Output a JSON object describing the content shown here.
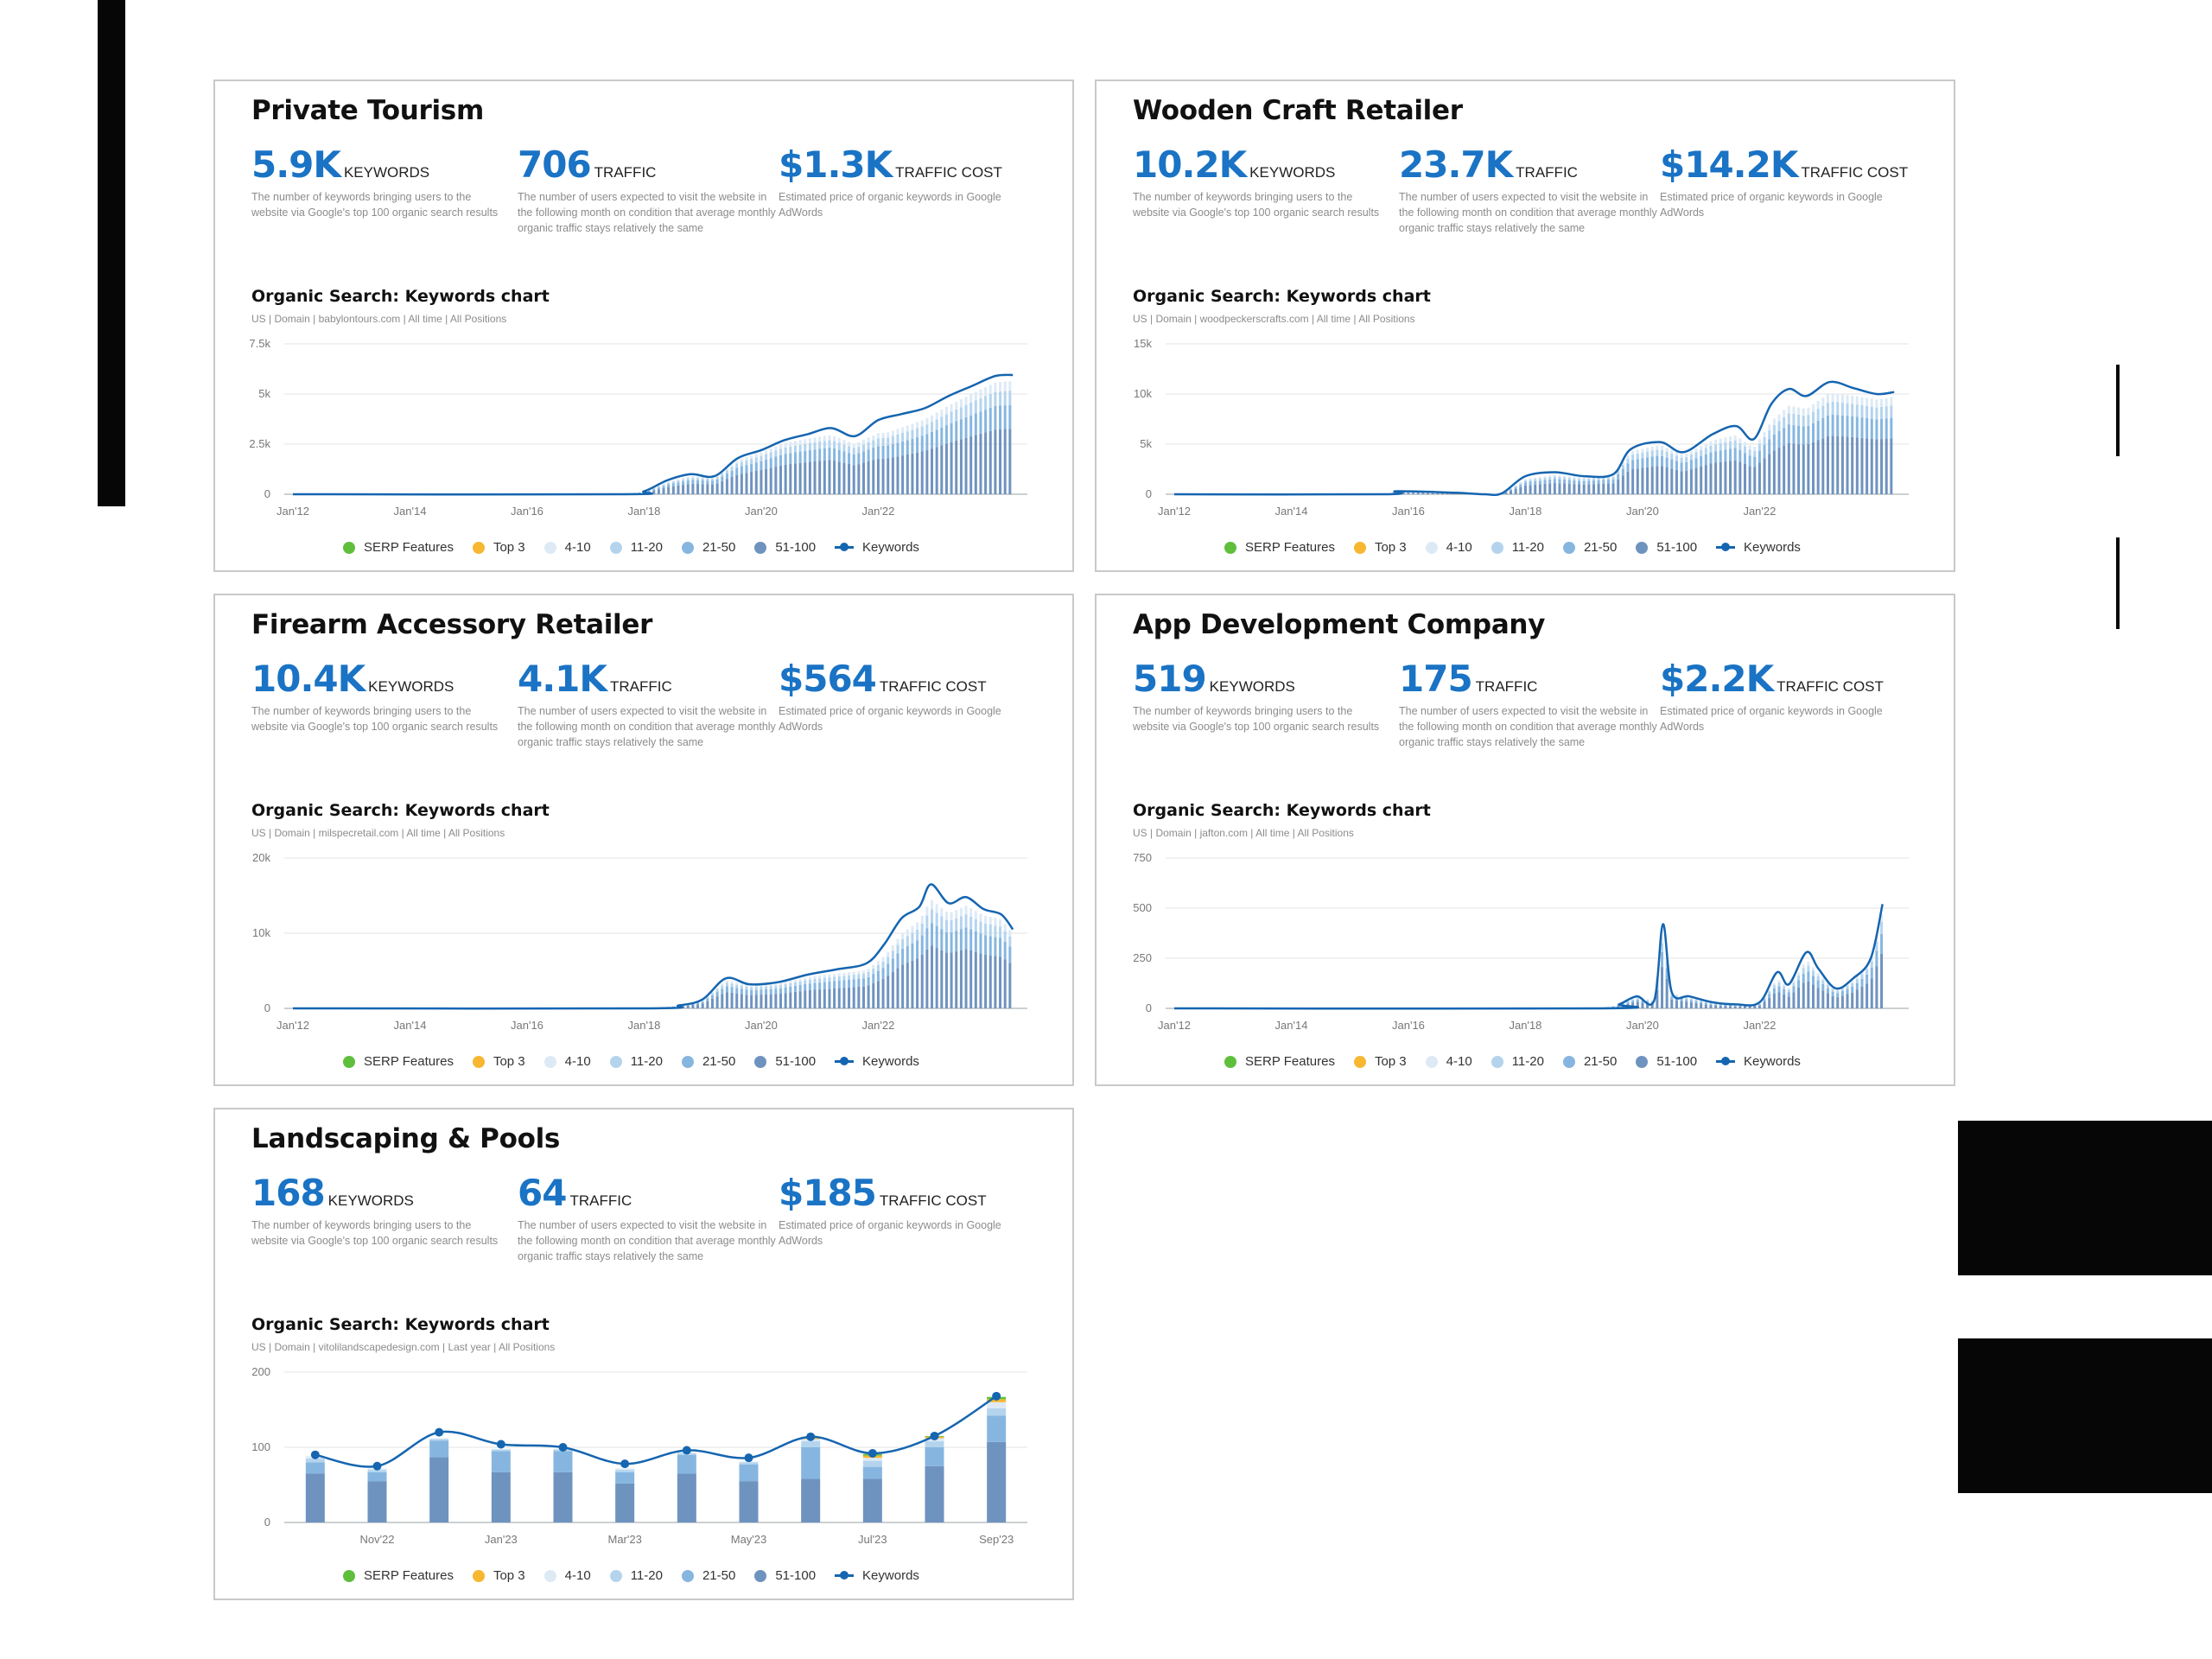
{
  "legend": [
    {
      "label": "SERP Features",
      "color": "#5fbf3d",
      "kind": "dot"
    },
    {
      "label": "Top 3",
      "color": "#f7b731",
      "kind": "dot"
    },
    {
      "label": "4-10",
      "color": "#ddeaf6",
      "kind": "dot"
    },
    {
      "label": "11-20",
      "color": "#b4d4ee",
      "kind": "dot"
    },
    {
      "label": "21-50",
      "color": "#86b6e0",
      "kind": "dot"
    },
    {
      "label": "51-100",
      "color": "#6f93bf",
      "kind": "dot"
    },
    {
      "label": "Keywords",
      "color": "#1565b0",
      "kind": "line"
    }
  ],
  "metric_descriptions": {
    "keywords": "The number of keywords bringing users to the website via Google's top 100 organic search results",
    "traffic": "The number of users expected to visit the website in the following month on condition that average monthly organic traffic stays relatively the same",
    "cost": "Estimated price of organic keywords in Google AdWords"
  },
  "metric_labels": {
    "keywords": "KEYWORDS",
    "traffic": "TRAFFIC",
    "cost": "TRAFFIC COST"
  },
  "chart_title": "Organic Search: Keywords chart",
  "panels": [
    {
      "title": "Private Tourism",
      "keywords": "5.9K",
      "traffic": "706",
      "cost": "$1.3K",
      "subtitle": "US | Domain | babylontours.com | All time | All Positions"
    },
    {
      "title": "Wooden Craft Retailer",
      "keywords": "10.2K",
      "traffic": "23.7K",
      "cost": "$14.2K",
      "subtitle": "US | Domain | woodpeckerscrafts.com | All time | All Positions"
    },
    {
      "title": "Firearm Accessory Retailer",
      "keywords": "10.4K",
      "traffic": "4.1K",
      "cost": "$564",
      "subtitle": "US | Domain | milspecretail.com | All time | All Positions"
    },
    {
      "title": "App Development Company",
      "keywords": "519",
      "traffic": "175",
      "cost": "$2.2K",
      "subtitle": "US | Domain | jafton.com | All time | All Positions"
    },
    {
      "title": "Landscaping & Pools",
      "keywords": "168",
      "traffic": "64",
      "cost": "$185",
      "subtitle": "US | Domain | vitolilandscapedesign.com | Last year | All Positions"
    }
  ],
  "chart_data": [
    {
      "type": "line",
      "title": "Organic Search: Keywords chart",
      "series_name": "Keywords",
      "x_ticks": [
        "Jan'12",
        "Jan'14",
        "Jan'16",
        "Jan'18",
        "Jan'20",
        "Jan'22"
      ],
      "y_ticks": [
        "0",
        "2.5k",
        "5k",
        "7.5k"
      ],
      "ylim": [
        0,
        7500
      ],
      "xlim": [
        2012,
        2024.4
      ],
      "points": [
        [
          2012,
          0
        ],
        [
          2017.6,
          0
        ],
        [
          2018.0,
          150
        ],
        [
          2018.4,
          700
        ],
        [
          2018.8,
          1000
        ],
        [
          2019.2,
          900
        ],
        [
          2019.6,
          1800
        ],
        [
          2020.0,
          2200
        ],
        [
          2020.4,
          2700
        ],
        [
          2020.8,
          3000
        ],
        [
          2021.2,
          3300
        ],
        [
          2021.6,
          2900
        ],
        [
          2022.0,
          3700
        ],
        [
          2022.4,
          4000
        ],
        [
          2022.8,
          4300
        ],
        [
          2023.2,
          4900
        ],
        [
          2023.6,
          5400
        ],
        [
          2024.0,
          5900
        ],
        [
          2024.3,
          5950
        ]
      ]
    },
    {
      "type": "line",
      "title": "Organic Search: Keywords chart",
      "series_name": "Keywords",
      "x_ticks": [
        "Jan'12",
        "Jan'14",
        "Jan'16",
        "Jan'18",
        "Jan'20",
        "Jan'22"
      ],
      "y_ticks": [
        "0",
        "5k",
        "10k",
        "15k"
      ],
      "ylim": [
        0,
        15000
      ],
      "xlim": [
        2012,
        2024.4
      ],
      "points": [
        [
          2012,
          0
        ],
        [
          2015.6,
          0
        ],
        [
          2015.8,
          300
        ],
        [
          2016.8,
          150
        ],
        [
          2017.3,
          0
        ],
        [
          2017.6,
          100
        ],
        [
          2018.0,
          1800
        ],
        [
          2018.5,
          2200
        ],
        [
          2019.0,
          1800
        ],
        [
          2019.5,
          2000
        ],
        [
          2019.8,
          4500
        ],
        [
          2020.3,
          5200
        ],
        [
          2020.7,
          4200
        ],
        [
          2021.2,
          6000
        ],
        [
          2021.6,
          6800
        ],
        [
          2021.9,
          5500
        ],
        [
          2022.2,
          9000
        ],
        [
          2022.5,
          10500
        ],
        [
          2022.8,
          9800
        ],
        [
          2023.2,
          11200
        ],
        [
          2023.6,
          10600
        ],
        [
          2024.0,
          10000
        ],
        [
          2024.3,
          10200
        ]
      ]
    },
    {
      "type": "line",
      "title": "Organic Search: Keywords chart",
      "series_name": "Keywords",
      "x_ticks": [
        "Jan'12",
        "Jan'14",
        "Jan'16",
        "Jan'18",
        "Jan'20",
        "Jan'22"
      ],
      "y_ticks": [
        "0",
        "10k",
        "20k"
      ],
      "ylim": [
        0,
        20000
      ],
      "xlim": [
        2012,
        2024.4
      ],
      "points": [
        [
          2012,
          0
        ],
        [
          2018.0,
          0
        ],
        [
          2018.6,
          400
        ],
        [
          2019.0,
          1200
        ],
        [
          2019.4,
          4000
        ],
        [
          2019.8,
          3200
        ],
        [
          2020.3,
          3500
        ],
        [
          2020.8,
          4500
        ],
        [
          2021.3,
          5200
        ],
        [
          2021.8,
          6000
        ],
        [
          2022.1,
          8500
        ],
        [
          2022.4,
          12000
        ],
        [
          2022.7,
          13500
        ],
        [
          2022.9,
          16500
        ],
        [
          2023.2,
          14000
        ],
        [
          2023.5,
          14800
        ],
        [
          2023.8,
          13200
        ],
        [
          2024.1,
          12500
        ],
        [
          2024.3,
          10500
        ]
      ]
    },
    {
      "type": "line",
      "title": "Organic Search: Keywords chart",
      "series_name": "Keywords",
      "x_ticks": [
        "Jan'12",
        "Jan'14",
        "Jan'16",
        "Jan'18",
        "Jan'20",
        "Jan'22"
      ],
      "y_ticks": [
        "0",
        "250",
        "500",
        "750"
      ],
      "ylim": [
        0,
        750
      ],
      "xlim": [
        2012,
        2024.4
      ],
      "points": [
        [
          2012,
          0
        ],
        [
          2019.3,
          0
        ],
        [
          2019.6,
          20
        ],
        [
          2019.9,
          60
        ],
        [
          2020.2,
          40
        ],
        [
          2020.35,
          420
        ],
        [
          2020.5,
          80
        ],
        [
          2020.8,
          60
        ],
        [
          2021.2,
          30
        ],
        [
          2021.6,
          20
        ],
        [
          2022.0,
          30
        ],
        [
          2022.3,
          180
        ],
        [
          2022.5,
          120
        ],
        [
          2022.8,
          280
        ],
        [
          2023.0,
          200
        ],
        [
          2023.3,
          100
        ],
        [
          2023.6,
          150
        ],
        [
          2023.9,
          250
        ],
        [
          2024.1,
          520
        ]
      ]
    },
    {
      "type": "bar",
      "title": "Organic Search: Keywords chart",
      "categories": [
        "Oct'22",
        "Nov'22",
        "Dec'22",
        "Jan'23",
        "Feb'23",
        "Mar'23",
        "Apr'23",
        "May'23",
        "Jun'23",
        "Jul'23",
        "Aug'23",
        "Sep'23"
      ],
      "x_tick_labels": [
        "Nov'22",
        "Jan'23",
        "Mar'23",
        "May'23",
        "Jul'23",
        "Sep'23"
      ],
      "y_ticks": [
        "0",
        "100",
        "200"
      ],
      "ylim": [
        0,
        200
      ],
      "series": [
        {
          "name": "51-100",
          "values": [
            65,
            55,
            87,
            67,
            67,
            52,
            65,
            55,
            58,
            58,
            75,
            107
          ]
        },
        {
          "name": "21-50",
          "values": [
            15,
            12,
            22,
            28,
            28,
            15,
            25,
            22,
            42,
            16,
            25,
            35
          ]
        },
        {
          "name": "11-20",
          "values": [
            5,
            3,
            2,
            2,
            2,
            3,
            2,
            3,
            8,
            8,
            8,
            10
          ]
        },
        {
          "name": "4-10",
          "values": [
            3,
            2,
            1,
            1,
            1,
            2,
            1,
            1,
            3,
            4,
            4,
            8
          ]
        },
        {
          "name": "Top 3",
          "values": [
            0,
            0,
            0,
            0,
            0,
            0,
            0,
            0,
            2,
            3,
            2,
            4
          ]
        },
        {
          "name": "SERP Features",
          "values": [
            0,
            0,
            0,
            0,
            0,
            0,
            0,
            0,
            1,
            2,
            1,
            3
          ]
        }
      ],
      "line": {
        "name": "Keywords",
        "values": [
          90,
          75,
          120,
          104,
          100,
          78,
          96,
          86,
          114,
          92,
          115,
          168
        ]
      }
    }
  ]
}
